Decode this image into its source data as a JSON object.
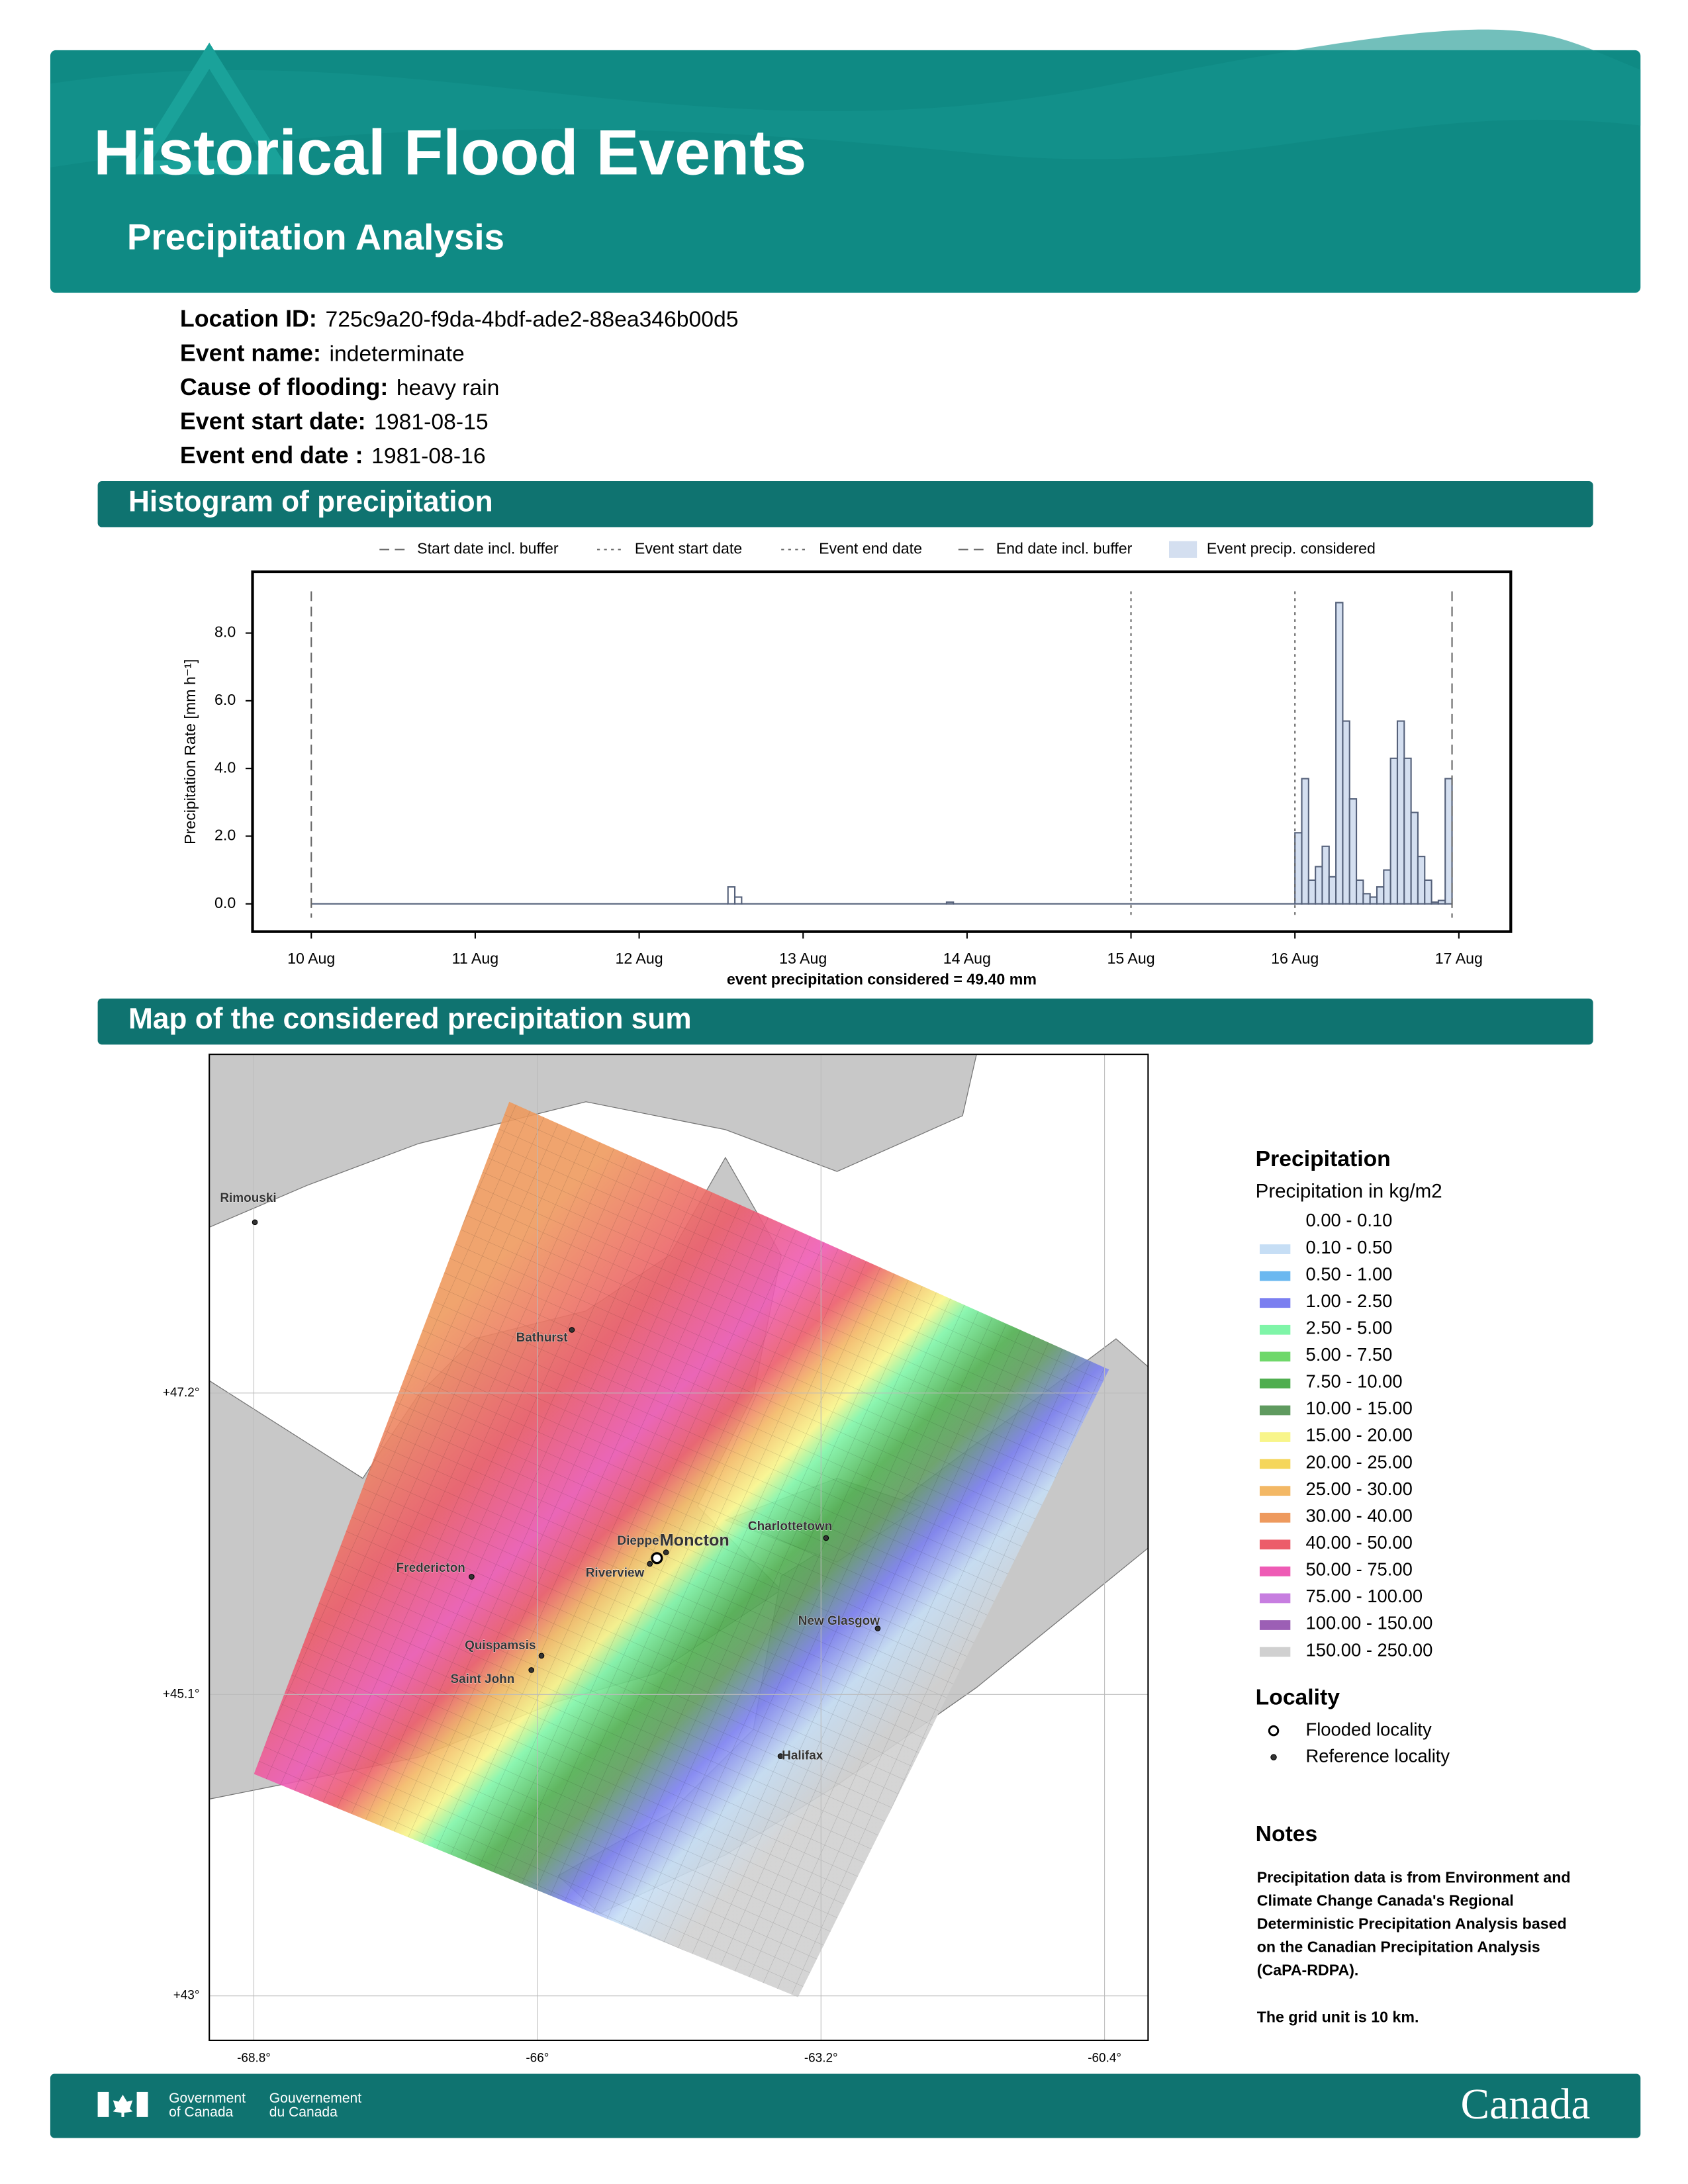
{
  "header": {
    "title": "Historical Flood Events",
    "subtitle": "Precipitation Analysis"
  },
  "info": [
    {
      "label": "Location ID:",
      "value": "725c9a20-f9da-4bdf-ade2-88ea346b00d5"
    },
    {
      "label": "Event name:",
      "value": "indeterminate"
    },
    {
      "label": "Cause of flooding:",
      "value": "heavy rain"
    },
    {
      "label": "Event start date:",
      "value": "1981-08-15"
    },
    {
      "label": "Event end date :",
      "value": "1981-08-16"
    }
  ],
  "histogram": {
    "title": "Histogram of precipitation"
  },
  "chart_data": {
    "type": "histogram",
    "y_label": "Precipitation Rate [mm h⁻¹]",
    "x_label": "event precipitation considered = 49.40 mm",
    "color": "#55617a",
    "bins": [
      0,
      61,
      62,
      63,
      93,
      94,
      144,
      145,
      146,
      147,
      148,
      149,
      150,
      151,
      152,
      153,
      154,
      155,
      156,
      157,
      158,
      159,
      160,
      161,
      162,
      163,
      164,
      165,
      166,
      167
    ],
    "values": [
      0,
      0.5,
      0.2,
      0,
      0.05,
      0,
      2.1,
      3.7,
      0.7,
      1.1,
      1.7,
      0.8,
      8.9,
      5.4,
      3.1,
      0.7,
      0.3,
      0.2,
      0.5,
      1.0,
      4.3,
      5.4,
      4.3,
      2.7,
      1.4,
      0.7,
      0.05,
      0.1,
      3.7
    ],
    "shade": {
      "name": "Event precip. considered",
      "color": "#d4dff0",
      "range": [
        144,
        167
      ]
    },
    "markers": [
      {
        "name": "Start date incl. buffer",
        "x": 0,
        "style": "dashed"
      },
      {
        "name": "Event start date",
        "x": 120,
        "style": "dotted"
      },
      {
        "name": "Event end date",
        "x": 144,
        "style": "dotted"
      },
      {
        "name": "End date incl. buffer",
        "x": 167,
        "style": "dashed"
      }
    ],
    "xlim": [
      -8.6,
      175.6
    ],
    "ylim": [
      -0.82,
      9.81
    ],
    "xticks": [
      {
        "value": 0,
        "label": "10 Aug"
      },
      {
        "value": 24,
        "label": "11 Aug"
      },
      {
        "value": 48,
        "label": "12 Aug"
      },
      {
        "value": 72,
        "label": "13 Aug"
      },
      {
        "value": 96,
        "label": "14 Aug"
      },
      {
        "value": 120,
        "label": "15 Aug"
      },
      {
        "value": 144,
        "label": "16 Aug"
      },
      {
        "value": 168,
        "label": "17 Aug"
      }
    ],
    "yticks": [
      {
        "value": 0,
        "label": "0.0"
      },
      {
        "value": 2,
        "label": "2.0"
      },
      {
        "value": 4,
        "label": "4.0"
      },
      {
        "value": 6,
        "label": "6.0"
      },
      {
        "value": 8,
        "label": "8.0"
      }
    ]
  },
  "map": {
    "title": "Map of the considered precipitation sum",
    "xlim": [
      -69.24,
      -59.97
    ],
    "ylim": [
      42.69,
      49.56
    ],
    "xticks": [
      {
        "value": -68.8,
        "label": "-68.8°"
      },
      {
        "value": -66,
        "label": "-66°"
      },
      {
        "value": -63.2,
        "label": "-63.2°"
      },
      {
        "value": -60.4,
        "label": "-60.4°"
      }
    ],
    "yticks": [
      {
        "value": 47.2,
        "label": "+47.2°"
      },
      {
        "value": 45.1,
        "label": "+45.1°"
      },
      {
        "value": 43,
        "label": "+43°"
      }
    ],
    "localities": [
      {
        "name": "Moncton",
        "lon": -64.82,
        "lat": 46.05,
        "flooded": true
      },
      {
        "name": "Rimouski",
        "lon": -68.79,
        "lat": 48.39,
        "flooded": false
      },
      {
        "name": "Bathurst",
        "lon": -65.66,
        "lat": 47.64,
        "flooded": false
      },
      {
        "name": "Dieppe",
        "lon": -64.73,
        "lat": 46.09,
        "flooded": false
      },
      {
        "name": "Riverview",
        "lon": -64.89,
        "lat": 46.01,
        "flooded": false
      },
      {
        "name": "Charlottetown",
        "lon": -63.15,
        "lat": 46.19,
        "flooded": false
      },
      {
        "name": "Fredericton",
        "lon": -66.65,
        "lat": 45.92,
        "flooded": false
      },
      {
        "name": "New Glasgow",
        "lon": -62.64,
        "lat": 45.56,
        "flooded": false
      },
      {
        "name": "Quispamsis",
        "lon": -65.96,
        "lat": 45.37,
        "flooded": false
      },
      {
        "name": "Saint John",
        "lon": -66.06,
        "lat": 45.27,
        "flooded": false
      },
      {
        "name": "Halifax",
        "lon": -63.6,
        "lat": 44.67,
        "flooded": false
      }
    ]
  },
  "legend": {
    "title": "Precipitation",
    "subtitle": "Precipitation in kg/m2",
    "classes": [
      {
        "label": "0.00 - 0.10",
        "color": "#ffffff"
      },
      {
        "label": "0.10 - 0.50",
        "color": "#c6def5"
      },
      {
        "label": "0.50 - 1.00",
        "color": "#6bb8f0"
      },
      {
        "label": "1.00 - 2.50",
        "color": "#7b7ff0"
      },
      {
        "label": "2.50 - 5.00",
        "color": "#7ff5a8"
      },
      {
        "label": "5.00 - 7.50",
        "color": "#6fd86a"
      },
      {
        "label": "7.50 - 10.00",
        "color": "#4fae4f"
      },
      {
        "label": "10.00 - 15.00",
        "color": "#5f9a5f"
      },
      {
        "label": "15.00 - 20.00",
        "color": "#f8f58a"
      },
      {
        "label": "20.00 - 25.00",
        "color": "#f5d65a"
      },
      {
        "label": "25.00 - 30.00",
        "color": "#f3b865"
      },
      {
        "label": "30.00 - 40.00",
        "color": "#ee9a5e"
      },
      {
        "label": "40.00 - 50.00",
        "color": "#ec5c6a"
      },
      {
        "label": "50.00 - 75.00",
        "color": "#ee5bb5"
      },
      {
        "label": "75.00 - 100.00",
        "color": "#c77ee0"
      },
      {
        "label": "100.00 - 150.00",
        "color": "#9c5fb5"
      },
      {
        "label": "150.00 - 250.00",
        "color": "#d0d0d0"
      }
    ],
    "locality_title": "Locality",
    "locality_items": [
      "Flooded locality",
      "Reference locality"
    ]
  },
  "notes": {
    "title": "Notes",
    "lines": [
      "Precipitation data is from Environment and",
      "Climate Change Canada's Regional",
      "Deterministic Precipitation Analysis based",
      "on the Canadian Precipitation Analysis",
      "(CaPA-RDPA)."
    ],
    "grid_note": "The grid unit is 10 km."
  },
  "footer": {
    "gov_en": [
      "Government",
      "of Canada"
    ],
    "gov_fr": [
      "Gouvernement",
      "du Canada"
    ],
    "wordmark": "Canada"
  }
}
